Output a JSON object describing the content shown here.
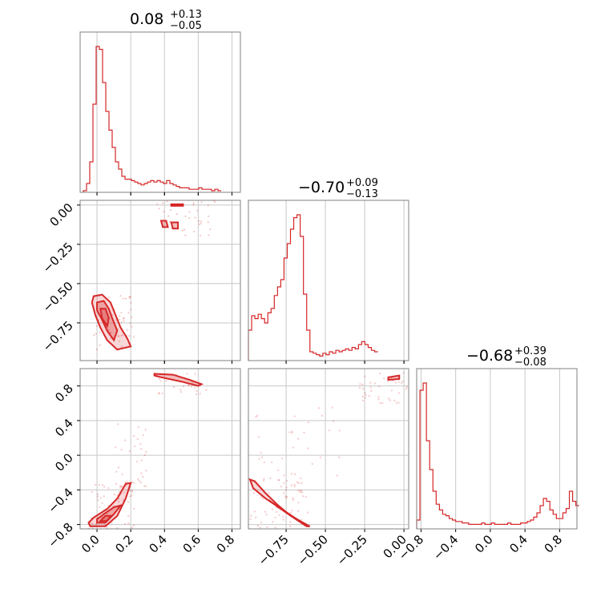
{
  "chart_data": {
    "type": "corner",
    "color": "#d62728",
    "parameters": [
      {
        "median": "0.08",
        "plus": "+0.13",
        "minus": "−0.05",
        "range": [
          -0.1,
          0.85
        ],
        "ticks": [
          0.0,
          0.2,
          0.4,
          0.6,
          0.8
        ],
        "tick_labels": [
          "0.0",
          "0.2",
          "0.4",
          "0.6",
          "0.8"
        ]
      },
      {
        "median": "−0.70",
        "plus": "+0.09",
        "minus": "−0.13",
        "range": [
          -0.99,
          0.03
        ],
        "ticks": [
          -0.75,
          -0.5,
          -0.25,
          0.0
        ],
        "tick_labels": [
          "−0.75",
          "−0.50",
          "−0.25",
          "0.00"
        ]
      },
      {
        "median": "−0.68",
        "plus": "+0.39",
        "minus": "−0.08",
        "range": [
          -0.85,
          1.0
        ],
        "ticks": [
          -0.8,
          -0.4,
          0.0,
          0.4,
          0.8
        ],
        "tick_labels": [
          "−0.8",
          "−0.4",
          "0.0",
          "0.4",
          "0.8"
        ]
      }
    ],
    "histograms": [
      {
        "param": 0,
        "bin_width": 0.019,
        "counts": [
          0,
          0.05,
          0.2,
          0.6,
          1.0,
          0.98,
          0.75,
          0.55,
          0.42,
          0.3,
          0.2,
          0.15,
          0.1,
          0.08,
          0.08,
          0.07,
          0.06,
          0.05,
          0.04,
          0.05,
          0.06,
          0.07,
          0.06,
          0.07,
          0.06,
          0.05,
          0.07,
          0.05,
          0.04,
          0.03,
          0.02,
          0.02,
          0.02,
          0.01,
          0.01,
          0.01,
          0.02,
          0.01,
          0.01,
          0.01,
          0.0,
          0.01,
          0.0
        ]
      },
      {
        "param": 1,
        "bin_width": 0.0206,
        "counts": [
          0.2,
          0.3,
          0.28,
          0.31,
          0.28,
          0.25,
          0.32,
          0.35,
          0.44,
          0.5,
          0.55,
          0.7,
          0.8,
          0.9,
          0.98,
          1.0,
          0.85,
          0.45,
          0.2,
          0.05,
          0.04,
          0.03,
          0.02,
          0.04,
          0.03,
          0.05,
          0.04,
          0.06,
          0.05,
          0.06,
          0.07,
          0.06,
          0.08,
          0.07,
          0.1,
          0.12,
          0.1,
          0.08,
          0.06,
          0.05
        ]
      },
      {
        "param": 2,
        "bin_width": 0.0375,
        "counts": [
          0.05,
          0.95,
          1.0,
          0.6,
          0.4,
          0.25,
          0.16,
          0.12,
          0.09,
          0.08,
          0.06,
          0.05,
          0.04,
          0.04,
          0.03,
          0.03,
          0.02,
          0.02,
          0.02,
          0.02,
          0.03,
          0.02,
          0.02,
          0.03,
          0.02,
          0.02,
          0.02,
          0.02,
          0.03,
          0.02,
          0.02,
          0.02,
          0.03,
          0.03,
          0.04,
          0.05,
          0.07,
          0.1,
          0.15,
          0.2,
          0.18,
          0.12,
          0.09,
          0.06,
          0.06,
          0.1,
          0.13,
          0.25,
          0.18,
          0.15
        ]
      }
    ],
    "scatters": [
      {
        "x_param": 0,
        "y_param": 1,
        "clusters": [
          {
            "x": [
              -0.02,
              0.22
            ],
            "y": [
              -0.92,
              -0.55
            ],
            "count": 60
          },
          {
            "x": [
              0.35,
              0.7
            ],
            "y": [
              -0.2,
              0.03
            ],
            "count": 35
          }
        ],
        "contours": [
          [
            [
              -0.02,
              -0.58
            ],
            [
              0.03,
              -0.57
            ],
            [
              0.08,
              -0.62
            ],
            [
              0.11,
              -0.7
            ],
            [
              0.14,
              -0.78
            ],
            [
              0.18,
              -0.85
            ],
            [
              0.2,
              -0.9
            ],
            [
              0.12,
              -0.92
            ],
            [
              0.06,
              -0.86
            ],
            [
              0.02,
              -0.78
            ],
            [
              -0.01,
              -0.7
            ],
            [
              -0.03,
              -0.62
            ]
          ],
          [
            [
              0.0,
              -0.62
            ],
            [
              0.04,
              -0.61
            ],
            [
              0.07,
              -0.66
            ],
            [
              0.09,
              -0.72
            ],
            [
              0.12,
              -0.8
            ],
            [
              0.1,
              -0.86
            ],
            [
              0.06,
              -0.8
            ],
            [
              0.03,
              -0.73
            ],
            [
              0.0,
              -0.67
            ]
          ],
          [
            [
              0.02,
              -0.66
            ],
            [
              0.05,
              -0.66
            ],
            [
              0.07,
              -0.72
            ],
            [
              0.06,
              -0.77
            ],
            [
              0.03,
              -0.72
            ]
          ],
          [
            [
              0.38,
              -0.1
            ],
            [
              0.41,
              -0.1
            ],
            [
              0.42,
              -0.14
            ],
            [
              0.39,
              -0.14
            ]
          ],
          [
            [
              0.44,
              -0.11
            ],
            [
              0.48,
              -0.11
            ],
            [
              0.48,
              -0.15
            ],
            [
              0.45,
              -0.15
            ]
          ],
          [
            [
              0.44,
              0.005
            ],
            [
              0.51,
              0.005
            ],
            [
              0.51,
              -0.005
            ],
            [
              0.44,
              -0.005
            ]
          ]
        ]
      },
      {
        "x_param": 0,
        "y_param": 2,
        "clusters": [
          {
            "x": [
              -0.05,
              0.22
            ],
            "y": [
              -0.85,
              -0.3
            ],
            "count": 70
          },
          {
            "x": [
              0.1,
              0.3
            ],
            "y": [
              -0.4,
              0.4
            ],
            "count": 30
          },
          {
            "x": [
              0.35,
              0.65
            ],
            "y": [
              0.7,
              0.95
            ],
            "count": 25
          }
        ],
        "contours": [
          [
            [
              -0.04,
              -0.82
            ],
            [
              0.05,
              -0.82
            ],
            [
              0.12,
              -0.7
            ],
            [
              0.17,
              -0.5
            ],
            [
              0.2,
              -0.32
            ],
            [
              0.17,
              -0.33
            ],
            [
              0.12,
              -0.5
            ],
            [
              0.06,
              -0.62
            ],
            [
              -0.02,
              -0.72
            ],
            [
              -0.05,
              -0.78
            ]
          ],
          [
            [
              0.0,
              -0.78
            ],
            [
              0.05,
              -0.78
            ],
            [
              0.1,
              -0.68
            ],
            [
              0.14,
              -0.58
            ],
            [
              0.1,
              -0.6
            ],
            [
              0.04,
              -0.68
            ],
            [
              0.0,
              -0.74
            ]
          ],
          [
            [
              0.02,
              -0.76
            ],
            [
              0.06,
              -0.76
            ],
            [
              0.08,
              -0.7
            ],
            [
              0.05,
              -0.7
            ]
          ],
          [
            [
              0.34,
              0.94
            ],
            [
              0.45,
              0.93
            ],
            [
              0.55,
              0.87
            ],
            [
              0.62,
              0.82
            ],
            [
              0.6,
              0.8
            ],
            [
              0.5,
              0.85
            ],
            [
              0.38,
              0.9
            ],
            [
              0.34,
              0.92
            ]
          ]
        ]
      },
      {
        "x_param": 1,
        "y_param": 2,
        "clusters": [
          {
            "x": [
              -0.99,
              -0.6
            ],
            "y": [
              -0.85,
              -0.2
            ],
            "count": 70
          },
          {
            "x": [
              -0.95,
              -0.4
            ],
            "y": [
              -0.3,
              0.6
            ],
            "count": 30
          },
          {
            "x": [
              -0.3,
              0.02
            ],
            "y": [
              0.6,
              0.95
            ],
            "count": 40
          }
        ],
        "contours": [
          [
            [
              -0.98,
              -0.28
            ],
            [
              -0.95,
              -0.3
            ],
            [
              -0.88,
              -0.44
            ],
            [
              -0.8,
              -0.58
            ],
            [
              -0.72,
              -0.7
            ],
            [
              -0.62,
              -0.82
            ],
            [
              -0.6,
              -0.82
            ],
            [
              -0.68,
              -0.74
            ],
            [
              -0.78,
              -0.62
            ],
            [
              -0.88,
              -0.5
            ],
            [
              -0.96,
              -0.38
            ]
          ],
          [
            [
              -0.86,
              -0.52
            ],
            [
              -0.8,
              -0.6
            ],
            [
              -0.72,
              -0.7
            ],
            [
              -0.66,
              -0.76
            ],
            [
              -0.7,
              -0.72
            ],
            [
              -0.78,
              -0.62
            ]
          ],
          [
            [
              -0.1,
              0.9
            ],
            [
              -0.03,
              0.92
            ],
            [
              -0.03,
              0.88
            ],
            [
              -0.1,
              0.87
            ]
          ]
        ]
      }
    ]
  }
}
